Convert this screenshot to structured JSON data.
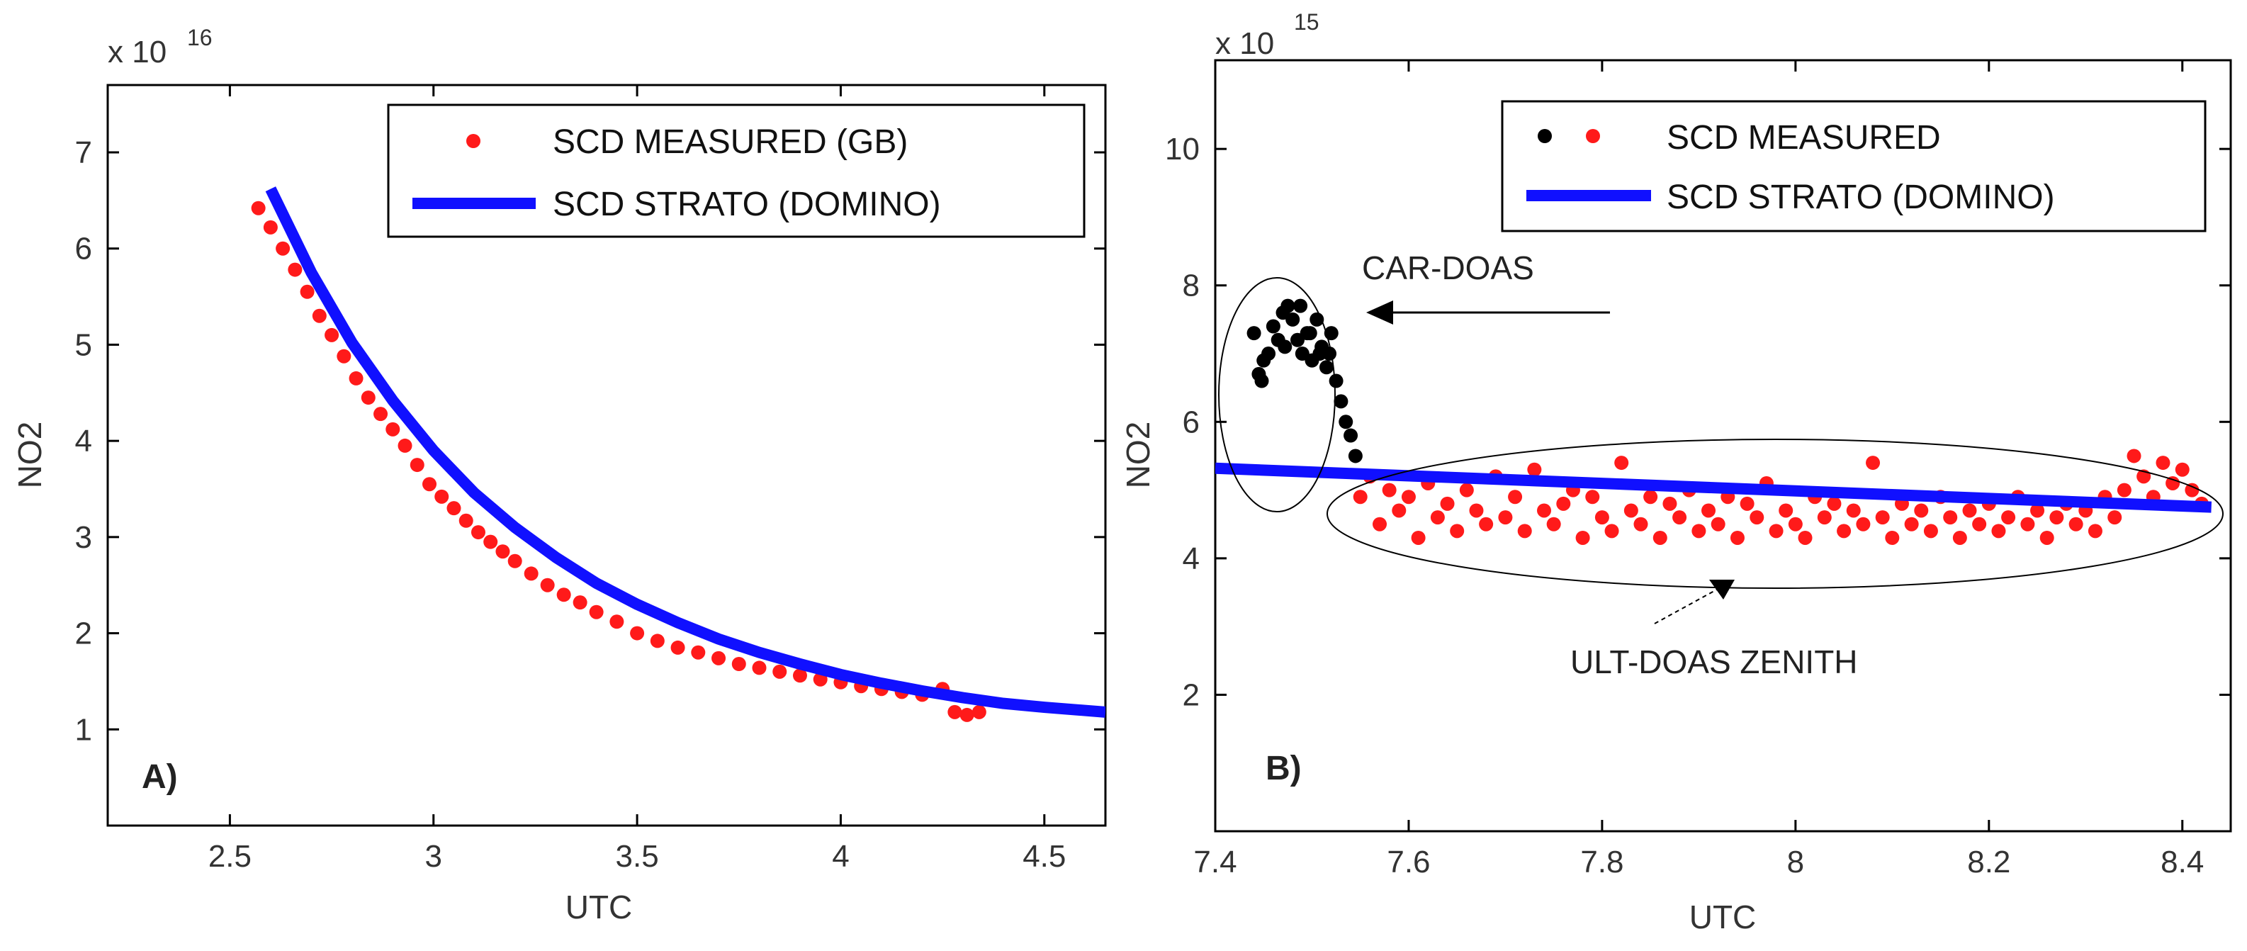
{
  "colors": {
    "measured_red": "#ff1a1a",
    "car_black": "#000000",
    "strato_blue": "#1010ff",
    "axis": "#000000"
  },
  "chart_data": [
    {
      "type": "scatter",
      "panel_label": "A)",
      "xlabel": "UTC",
      "ylabel": "NO2",
      "y_multiplier": "x 10",
      "y_exponent": "16",
      "xlim": [
        2.2,
        4.65
      ],
      "ylim": [
        0,
        7.7
      ],
      "x_ticks": [
        2.5,
        3,
        3.5,
        4,
        4.5
      ],
      "x_tick_labels": [
        "2.5",
        "3",
        "3.5",
        "4",
        "4.5"
      ],
      "y_ticks": [
        1,
        2,
        3,
        4,
        5,
        6,
        7
      ],
      "y_tick_labels": [
        "1",
        "2",
        "3",
        "4",
        "5",
        "6",
        "7"
      ],
      "legend": [
        "SCD MEASURED (GB)",
        "SCD STRATO (DOMINO)"
      ],
      "series": [
        {
          "name": "SCD MEASURED (GB)",
          "kind": "points",
          "color": "#ff1a1a",
          "x": [
            2.57,
            2.6,
            2.63,
            2.66,
            2.69,
            2.72,
            2.75,
            2.78,
            2.81,
            2.84,
            2.87,
            2.9,
            2.93,
            2.96,
            2.99,
            3.02,
            3.05,
            3.08,
            3.11,
            3.14,
            3.17,
            3.2,
            3.24,
            3.28,
            3.32,
            3.36,
            3.4,
            3.45,
            3.5,
            3.55,
            3.6,
            3.65,
            3.7,
            3.75,
            3.8,
            3.85,
            3.9,
            3.95,
            4.0,
            4.05,
            4.1,
            4.15,
            4.2,
            4.25,
            4.28,
            4.31,
            4.34
          ],
          "y": [
            6.42,
            6.22,
            6.0,
            5.78,
            5.55,
            5.3,
            5.1,
            4.88,
            4.65,
            4.45,
            4.28,
            4.12,
            3.95,
            3.75,
            3.55,
            3.42,
            3.3,
            3.17,
            3.05,
            2.95,
            2.85,
            2.75,
            2.62,
            2.5,
            2.4,
            2.32,
            2.22,
            2.12,
            2.0,
            1.92,
            1.85,
            1.8,
            1.74,
            1.68,
            1.64,
            1.6,
            1.56,
            1.52,
            1.49,
            1.45,
            1.42,
            1.39,
            1.36,
            1.42,
            1.18,
            1.15,
            1.18
          ]
        },
        {
          "name": "SCD STRATO (DOMINO)",
          "kind": "line",
          "color": "#1010ff",
          "x": [
            2.6,
            2.7,
            2.8,
            2.9,
            3.0,
            3.1,
            3.2,
            3.3,
            3.4,
            3.5,
            3.6,
            3.7,
            3.8,
            3.9,
            4.0,
            4.1,
            4.2,
            4.3,
            4.4,
            4.5,
            4.65
          ],
          "y": [
            6.62,
            5.75,
            5.02,
            4.42,
            3.9,
            3.46,
            3.1,
            2.79,
            2.52,
            2.3,
            2.11,
            1.94,
            1.8,
            1.68,
            1.57,
            1.48,
            1.4,
            1.33,
            1.27,
            1.23,
            1.18
          ]
        }
      ]
    },
    {
      "type": "scatter",
      "panel_label": "B)",
      "xlabel": "UTC",
      "ylabel": "NO2",
      "y_multiplier": "x 10",
      "y_exponent": "15",
      "xlim": [
        7.4,
        8.45
      ],
      "ylim": [
        0,
        11.3
      ],
      "x_ticks": [
        7.4,
        7.6,
        7.8,
        8.0,
        8.2,
        8.4
      ],
      "x_tick_labels": [
        "7.4",
        "7.6",
        "7.8",
        "8",
        "8.2",
        "8.4"
      ],
      "y_ticks": [
        2,
        4,
        6,
        8,
        10
      ],
      "y_tick_labels": [
        "2",
        "4",
        "6",
        "8",
        "10"
      ],
      "legend": [
        "SCD MEASURED",
        "SCD STRATO (DOMINO)"
      ],
      "annotations": [
        "CAR-DOAS",
        "ULT-DOAS ZENITH"
      ],
      "series": [
        {
          "name": "CAR-DOAS",
          "kind": "points",
          "color": "#000000",
          "x": [
            7.44,
            7.445,
            7.45,
            7.455,
            7.46,
            7.465,
            7.47,
            7.475,
            7.48,
            7.485,
            7.49,
            7.495,
            7.5,
            7.505,
            7.51,
            7.515,
            7.52,
            7.525,
            7.53,
            7.535,
            7.54,
            7.545,
            7.448,
            7.472,
            7.488,
            7.498,
            7.508,
            7.518
          ],
          "y": [
            7.3,
            6.7,
            6.9,
            7.0,
            7.4,
            7.2,
            7.6,
            7.7,
            7.5,
            7.2,
            7.0,
            7.3,
            6.9,
            7.5,
            7.1,
            6.8,
            7.3,
            6.6,
            6.3,
            6.0,
            5.8,
            5.5,
            6.6,
            7.1,
            7.7,
            7.3,
            7.0,
            7.0
          ]
        },
        {
          "name": "ULT-DOAS ZENITH",
          "kind": "points",
          "color": "#ff1a1a",
          "x": [
            7.55,
            7.56,
            7.57,
            7.58,
            7.59,
            7.6,
            7.61,
            7.62,
            7.63,
            7.64,
            7.65,
            7.66,
            7.67,
            7.68,
            7.69,
            7.7,
            7.71,
            7.72,
            7.73,
            7.74,
            7.75,
            7.76,
            7.77,
            7.78,
            7.79,
            7.8,
            7.81,
            7.82,
            7.83,
            7.84,
            7.85,
            7.86,
            7.87,
            7.88,
            7.89,
            7.9,
            7.91,
            7.92,
            7.93,
            7.94,
            7.95,
            7.96,
            7.97,
            7.98,
            7.99,
            8.0,
            8.01,
            8.02,
            8.03,
            8.04,
            8.05,
            8.06,
            8.07,
            8.08,
            8.09,
            8.1,
            8.11,
            8.12,
            8.13,
            8.14,
            8.15,
            8.16,
            8.17,
            8.18,
            8.19,
            8.2,
            8.21,
            8.22,
            8.23,
            8.24,
            8.25,
            8.26,
            8.27,
            8.28,
            8.29,
            8.3,
            8.31,
            8.32,
            8.33,
            8.34,
            8.35,
            8.36,
            8.37,
            8.38,
            8.39,
            8.4,
            8.41,
            8.42
          ],
          "y": [
            4.9,
            5.2,
            4.5,
            5.0,
            4.7,
            4.9,
            4.3,
            5.1,
            4.6,
            4.8,
            4.4,
            5.0,
            4.7,
            4.5,
            5.2,
            4.6,
            4.9,
            4.4,
            5.3,
            4.7,
            4.5,
            4.8,
            5.0,
            4.3,
            4.9,
            4.6,
            4.4,
            5.4,
            4.7,
            4.5,
            4.9,
            4.3,
            4.8,
            4.6,
            5.0,
            4.4,
            4.7,
            4.5,
            4.9,
            4.3,
            4.8,
            4.6,
            5.1,
            4.4,
            4.7,
            4.5,
            4.3,
            4.9,
            4.6,
            4.8,
            4.4,
            4.7,
            4.5,
            5.4,
            4.6,
            4.3,
            4.8,
            4.5,
            4.7,
            4.4,
            4.9,
            4.6,
            4.3,
            4.7,
            4.5,
            4.8,
            4.4,
            4.6,
            4.9,
            4.5,
            4.7,
            4.3,
            4.6,
            4.8,
            4.5,
            4.7,
            4.4,
            4.9,
            4.6,
            5.0,
            5.5,
            5.2,
            4.9,
            5.4,
            5.1,
            5.3,
            5.0,
            4.8
          ]
        },
        {
          "name": "SCD STRATO (DOMINO)",
          "kind": "line",
          "color": "#1010ff",
          "x": [
            7.4,
            8.43
          ],
          "y": [
            5.32,
            4.75
          ]
        }
      ]
    }
  ]
}
